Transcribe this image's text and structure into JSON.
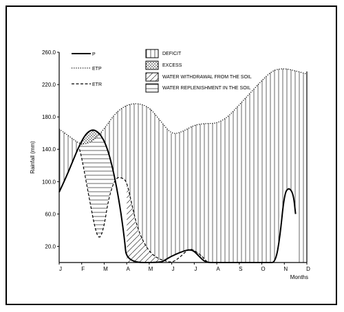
{
  "chart_data": {
    "type": "line",
    "title": "",
    "xlabel": "Months",
    "ylabel": "Rainfall (mm)",
    "ylim": [
      0,
      260
    ],
    "categories": [
      "J",
      "F",
      "M",
      "A",
      "M",
      "J",
      "J",
      "A",
      "S",
      "O",
      "N",
      "D"
    ],
    "yticks": [
      "20.0",
      "60.0",
      "100.0",
      "140.0",
      "180.0",
      "220.0",
      "260.0"
    ],
    "ytick_values": [
      20,
      60,
      100,
      140,
      180,
      220,
      260
    ],
    "series": [
      {
        "name": "P",
        "style": "solid",
        "x": [
          0,
          0.3,
          0.6,
          0.9,
          1.2,
          1.5,
          1.8,
          2.1,
          2.4,
          2.7,
          2.9,
          3.0,
          4.5,
          4.7,
          5.0,
          5.5,
          5.8,
          6.0,
          6.2,
          6.5,
          7.0,
          7.5,
          8.0,
          8.5,
          9.0,
          9.3,
          9.6,
          9.8,
          10.0,
          10.2,
          10.4,
          10.5
        ],
        "values": [
          87,
          105,
          125,
          145,
          160,
          165,
          160,
          145,
          115,
          70,
          30,
          0,
          0,
          3,
          8,
          14,
          16,
          14,
          8,
          0,
          0,
          0,
          0,
          0,
          0,
          0,
          0,
          30,
          85,
          93,
          85,
          60
        ]
      },
      {
        "name": "ETP",
        "style": "dotted",
        "x": [
          0,
          0.5,
          1.0,
          1.5,
          2.0,
          2.5,
          3.0,
          3.5,
          4.0,
          4.5,
          5.0,
          5.5,
          6.0,
          6.5,
          7.0,
          7.5,
          8.0,
          8.5,
          9.0,
          9.5,
          10.0,
          10.5,
          11.0
        ],
        "values": [
          165,
          155,
          145,
          150,
          165,
          185,
          195,
          197,
          192,
          175,
          158,
          162,
          170,
          172,
          172,
          180,
          195,
          210,
          225,
          238,
          240,
          237,
          233
        ]
      },
      {
        "name": "ETR",
        "style": "dashed",
        "x": [
          0.9,
          1.0,
          1.3,
          1.6,
          1.8,
          2.0,
          2.2,
          2.5,
          2.8,
          3.0,
          3.2,
          3.5,
          3.9,
          4.3,
          4.7,
          5.0,
          5.3,
          5.6,
          5.8,
          6.0,
          6.3,
          6.6
        ],
        "values": [
          140,
          130,
          85,
          40,
          28,
          45,
          80,
          105,
          105,
          100,
          75,
          40,
          17,
          6,
          2,
          0,
          5,
          13,
          17,
          15,
          9,
          0
        ]
      }
    ],
    "areas": [
      {
        "name": "DEFICIT",
        "pattern": "vertical-lines"
      },
      {
        "name": "EXCESS",
        "pattern": "dots"
      },
      {
        "name": "WATER WITHDRAWAL FROM THE SOIL",
        "pattern": "diagonal-lines"
      },
      {
        "name": "WATER REPLENISHMENT IN THE SOIL",
        "pattern": "horizontal-lines"
      }
    ],
    "legend_placement": "top"
  }
}
